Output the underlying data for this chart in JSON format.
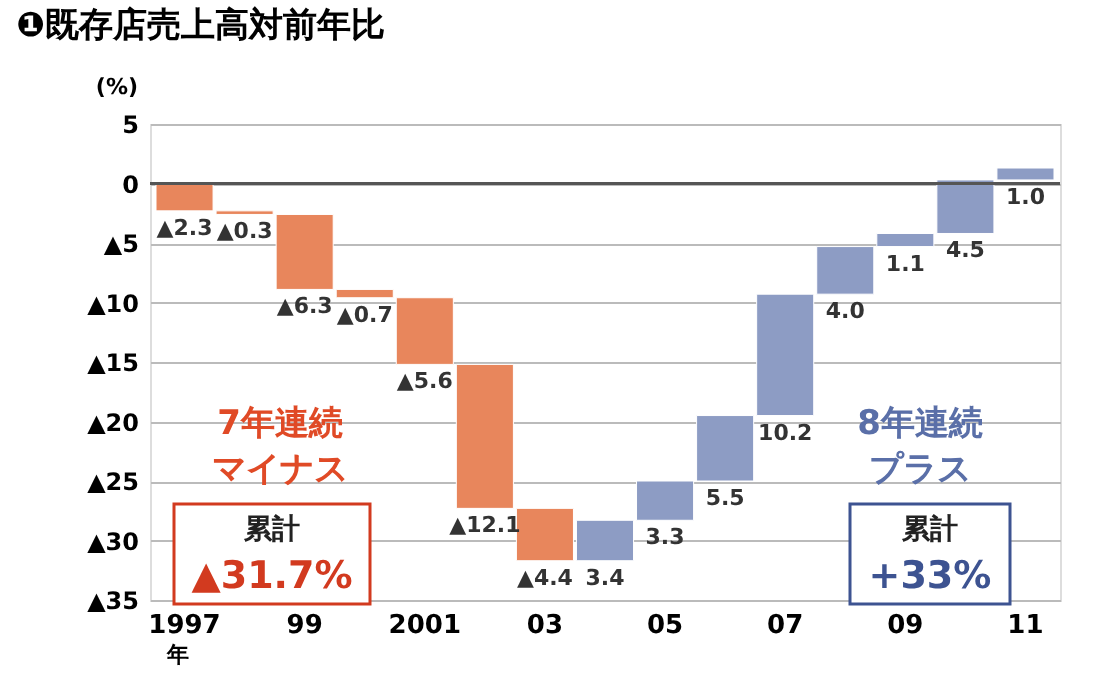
{
  "chart_data": {
    "type": "bar",
    "title": "❶既存店売上高対前年比",
    "ylabel": "(%)",
    "xlabel": "年",
    "categories": [
      "1997",
      null,
      "99",
      null,
      "2001",
      null,
      "03",
      null,
      "05",
      null,
      "07",
      null,
      "09",
      null,
      "11"
    ],
    "values": [
      -2.3,
      -0.3,
      -6.3,
      -0.7,
      -5.6,
      -12.1,
      -4.4,
      3.4,
      3.3,
      5.5,
      10.2,
      4.0,
      1.1,
      4.5,
      1.0
    ],
    "base": [
      0,
      -2.3,
      -2.6,
      -8.9,
      -9.6,
      -15.2,
      -27.3,
      -31.7,
      -28.3,
      -25.0,
      -19.5,
      -9.3,
      -5.3,
      -4.2,
      0.3
    ],
    "colors": [
      "#e8865c",
      "#e8865c",
      "#e8865c",
      "#e8865c",
      "#e8865c",
      "#e8865c",
      "#e8865c",
      "#8d9cc4",
      "#8d9cc4",
      "#8d9cc4",
      "#8d9cc4",
      "#8d9cc4",
      "#8d9cc4",
      "#8d9cc4",
      "#8d9cc4"
    ],
    "value_labels": [
      "▲2.3",
      "▲0.3",
      "▲6.3",
      "▲0.7",
      "▲5.6",
      "▲12.1",
      "▲4.4",
      "3.4",
      "3.3",
      "5.5",
      "10.2",
      "4.0",
      "1.1",
      "4.5",
      "1.0"
    ],
    "ylim": [
      -35,
      5
    ],
    "yticks": [
      5,
      0,
      {
        "value": -5,
        "label": "▲5"
      },
      {
        "value": -10,
        "label": "▲10"
      },
      {
        "value": -15,
        "label": "▲15"
      },
      {
        "value": -20,
        "label": "▲20"
      },
      {
        "value": -25,
        "label": "▲25"
      },
      {
        "value": -30,
        "label": "▲30"
      },
      {
        "value": -35,
        "label": "▲35"
      }
    ],
    "grid": "y",
    "ref_lines": [
      {
        "axis": "y",
        "value": 0,
        "color": "#555555"
      }
    ],
    "annotations": [
      "7年連続",
      "マイナス",
      "8年連続",
      "プラス",
      "累計",
      "▲31.7%",
      "累計",
      "+33%"
    ]
  }
}
